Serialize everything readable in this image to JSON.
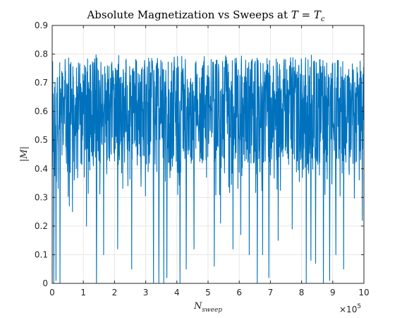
{
  "chart_data": {
    "type": "line",
    "title_prefix": "Absolute Magnetization vs Sweeps at ",
    "title_math": "T = T",
    "title_math_sub": "c",
    "xlabel_main": "N",
    "xlabel_sub": "sweep",
    "ylabel": "|M|",
    "x_multiplier_base": "×10",
    "x_multiplier_exp": "5",
    "xlim": [
      0,
      10
    ],
    "ylim": [
      0,
      0.9
    ],
    "xticks": [
      "0",
      "1",
      "2",
      "3",
      "4",
      "5",
      "6",
      "7",
      "8",
      "9",
      "10"
    ],
    "yticks": [
      "0",
      "0.1",
      "0.2",
      "0.3",
      "0.4",
      "0.5",
      "0.6",
      "0.7",
      "0.8",
      "0.9"
    ],
    "grid": true,
    "series": [
      {
        "color": "#0072BD",
        "mean": 0.62,
        "upper_envelope": 0.79,
        "lower_envelope_typical": 0.42,
        "dips": [
          {
            "x": 0.05,
            "y": 0.0
          },
          {
            "x": 0.12,
            "y": 0.01
          },
          {
            "x": 0.25,
            "y": 0.0
          },
          {
            "x": 0.55,
            "y": 0.27
          },
          {
            "x": 0.65,
            "y": 0.25
          },
          {
            "x": 1.1,
            "y": 0.2
          },
          {
            "x": 1.42,
            "y": 0.0
          },
          {
            "x": 1.65,
            "y": 0.1
          },
          {
            "x": 2.1,
            "y": 0.12
          },
          {
            "x": 2.55,
            "y": 0.05
          },
          {
            "x": 3.25,
            "y": 0.0
          },
          {
            "x": 3.42,
            "y": 0.0
          },
          {
            "x": 3.58,
            "y": 0.0
          },
          {
            "x": 3.68,
            "y": 0.02
          },
          {
            "x": 4.1,
            "y": 0.0
          },
          {
            "x": 4.3,
            "y": 0.05
          },
          {
            "x": 4.55,
            "y": 0.12
          },
          {
            "x": 5.2,
            "y": 0.06
          },
          {
            "x": 5.4,
            "y": 0.21
          },
          {
            "x": 5.8,
            "y": 0.12
          },
          {
            "x": 6.05,
            "y": 0.17
          },
          {
            "x": 6.32,
            "y": 0.1
          },
          {
            "x": 6.58,
            "y": 0.0
          },
          {
            "x": 6.75,
            "y": 0.1
          },
          {
            "x": 6.95,
            "y": 0.02
          },
          {
            "x": 7.25,
            "y": 0.15
          },
          {
            "x": 7.7,
            "y": 0.19
          },
          {
            "x": 8.15,
            "y": 0.0
          },
          {
            "x": 8.3,
            "y": 0.08
          },
          {
            "x": 8.45,
            "y": 0.07
          },
          {
            "x": 8.7,
            "y": 0.0
          },
          {
            "x": 8.9,
            "y": 0.01
          },
          {
            "x": 9.1,
            "y": 0.1
          },
          {
            "x": 9.35,
            "y": 0.05
          },
          {
            "x": 9.95,
            "y": 0.22
          }
        ]
      }
    ]
  }
}
